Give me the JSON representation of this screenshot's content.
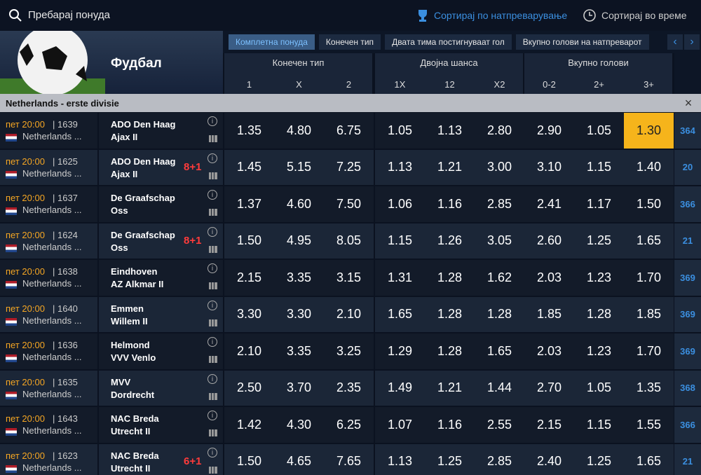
{
  "header": {
    "search_placeholder": "Пребарај понуда",
    "sort_by_competition": "Сортирај по натпреварување",
    "sort_by_time": "Сортирај во време"
  },
  "sport": "Фудбал",
  "tabs": [
    "Комплетна понуда",
    "Конечен тип",
    "Двата тима постигнуваат гол",
    "Вкупно голови на натпреварот"
  ],
  "groups": [
    {
      "label": "Конечен тип",
      "columns": [
        "1",
        "X",
        "2"
      ]
    },
    {
      "label": "Двојна шанса",
      "columns": [
        "1X",
        "12",
        "X2"
      ]
    },
    {
      "label": "Вкупно голови",
      "columns": [
        "0-2",
        "2+",
        "3+"
      ]
    }
  ],
  "league": "Netherlands - erste divisie",
  "rows": [
    {
      "time": "пет 20:00",
      "id": "| 1639",
      "league": "Netherlands ...",
      "home": "ADO Den Haag",
      "away": "Ajax II",
      "odds": [
        "1.35",
        "4.80",
        "6.75",
        "1.05",
        "1.13",
        "2.80",
        "2.90",
        "1.05",
        "1.30"
      ],
      "more": "364",
      "selected": 8
    },
    {
      "time": "пет 20:00",
      "id": "| 1625",
      "league": "Netherlands ...",
      "home": "ADO Den Haag",
      "away": "Ajax II",
      "badge": "8+1",
      "odds": [
        "1.45",
        "5.15",
        "7.25",
        "1.13",
        "1.21",
        "3.00",
        "3.10",
        "1.15",
        "1.40"
      ],
      "more": "20"
    },
    {
      "time": "пет 20:00",
      "id": "| 1637",
      "league": "Netherlands ...",
      "home": "De Graafschap",
      "away": "Oss",
      "odds": [
        "1.37",
        "4.60",
        "7.50",
        "1.06",
        "1.16",
        "2.85",
        "2.41",
        "1.17",
        "1.50"
      ],
      "more": "366"
    },
    {
      "time": "пет 20:00",
      "id": "| 1624",
      "league": "Netherlands ...",
      "home": "De Graafschap",
      "away": "Oss",
      "badge": "8+1",
      "odds": [
        "1.50",
        "4.95",
        "8.05",
        "1.15",
        "1.26",
        "3.05",
        "2.60",
        "1.25",
        "1.65"
      ],
      "more": "21"
    },
    {
      "time": "пет 20:00",
      "id": "| 1638",
      "league": "Netherlands ...",
      "home": "Eindhoven",
      "away": "AZ Alkmar II",
      "odds": [
        "2.15",
        "3.35",
        "3.15",
        "1.31",
        "1.28",
        "1.62",
        "2.03",
        "1.23",
        "1.70"
      ],
      "more": "369"
    },
    {
      "time": "пет 20:00",
      "id": "| 1640",
      "league": "Netherlands ...",
      "home": "Emmen",
      "away": "Willem II",
      "odds": [
        "3.30",
        "3.30",
        "2.10",
        "1.65",
        "1.28",
        "1.28",
        "1.85",
        "1.28",
        "1.85"
      ],
      "more": "369"
    },
    {
      "time": "пет 20:00",
      "id": "| 1636",
      "league": "Netherlands ...",
      "home": "Helmond",
      "away": "VVV Venlo",
      "odds": [
        "2.10",
        "3.35",
        "3.25",
        "1.29",
        "1.28",
        "1.65",
        "2.03",
        "1.23",
        "1.70"
      ],
      "more": "369"
    },
    {
      "time": "пет 20:00",
      "id": "| 1635",
      "league": "Netherlands ...",
      "home": "MVV",
      "away": "Dordrecht",
      "odds": [
        "2.50",
        "3.70",
        "2.35",
        "1.49",
        "1.21",
        "1.44",
        "2.70",
        "1.05",
        "1.35"
      ],
      "more": "368"
    },
    {
      "time": "пет 20:00",
      "id": "| 1643",
      "league": "Netherlands ...",
      "home": "NAC Breda",
      "away": "Utrecht II",
      "odds": [
        "1.42",
        "4.30",
        "6.25",
        "1.07",
        "1.16",
        "2.55",
        "2.15",
        "1.15",
        "1.55"
      ],
      "more": "366"
    },
    {
      "time": "пет 20:00",
      "id": "| 1623",
      "league": "Netherlands ...",
      "home": "NAC Breda",
      "away": "Utrecht II",
      "badge": "6+1",
      "odds": [
        "1.50",
        "4.65",
        "7.65",
        "1.13",
        "1.25",
        "2.85",
        "2.40",
        "1.25",
        "1.65"
      ],
      "more": "21"
    }
  ]
}
